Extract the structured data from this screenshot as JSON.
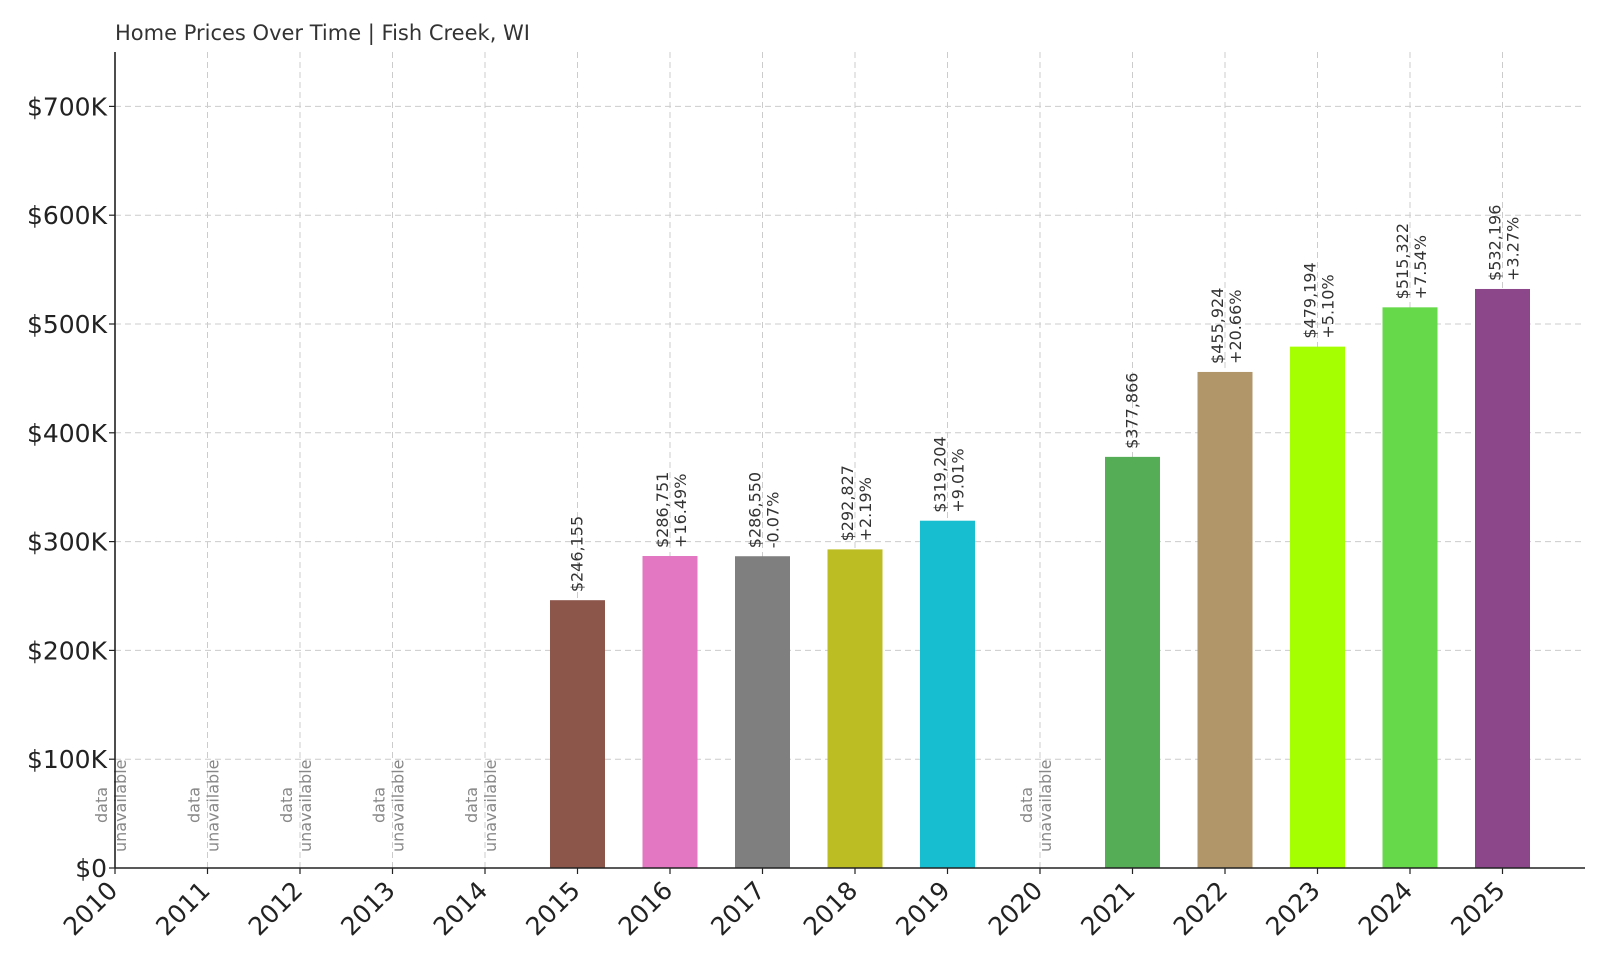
{
  "chart_data": {
    "type": "bar",
    "title": "Home Prices Over Time | Fish Creek, WI",
    "xlabel": "",
    "ylabel": "",
    "ylim": [
      0,
      750000
    ],
    "grid": true,
    "y_ticks": [
      {
        "value": 0,
        "label": "$0"
      },
      {
        "value": 100000,
        "label": "$100K"
      },
      {
        "value": 200000,
        "label": "$200K"
      },
      {
        "value": 300000,
        "label": "$300K"
      },
      {
        "value": 400000,
        "label": "$400K"
      },
      {
        "value": 500000,
        "label": "$500K"
      },
      {
        "value": 600000,
        "label": "$600K"
      },
      {
        "value": 700000,
        "label": "$700K"
      }
    ],
    "categories": [
      "2010",
      "2011",
      "2012",
      "2013",
      "2014",
      "2015",
      "2016",
      "2017",
      "2018",
      "2019",
      "2020",
      "2021",
      "2022",
      "2023",
      "2024",
      "2025"
    ],
    "values": [
      null,
      null,
      null,
      null,
      null,
      246155,
      286751,
      286550,
      292827,
      319204,
      null,
      377866,
      455924,
      479194,
      515322,
      532196
    ],
    "value_labels": [
      "",
      "",
      "",
      "",
      "",
      "$246,155",
      "$286,751",
      "$286,550",
      "$292,827",
      "$319,204",
      "",
      "$377,866",
      "$455,924",
      "$479,194",
      "$515,322",
      "$532,196"
    ],
    "change_labels": [
      "",
      "",
      "",
      "",
      "",
      "",
      "+16.49%",
      "-0.07%",
      "+2.19%",
      "+9.01%",
      "",
      "",
      "+20.66%",
      "+5.10%",
      "+7.54%",
      "+3.27%"
    ],
    "missing_label_line1": "data",
    "missing_label_line2": "unavailable",
    "colors": [
      "#1f77b4",
      "#ff7f0e",
      "#2ca02c",
      "#d62728",
      "#9467bd",
      "#8c564b",
      "#e377c2",
      "#7f7f7f",
      "#bcbd22",
      "#17becf",
      "#1f77b4",
      "#55ad55",
      "#b1966a",
      "#a6ff00",
      "#66d94a",
      "#8b4789"
    ]
  }
}
